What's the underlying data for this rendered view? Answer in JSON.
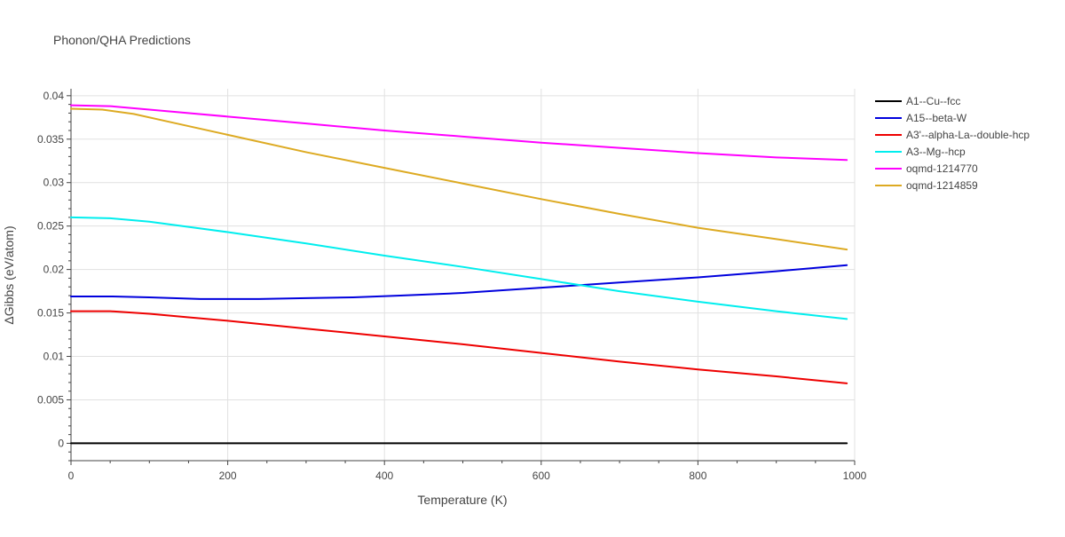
{
  "chart_data": {
    "type": "line",
    "title": "Phonon/QHA Predictions",
    "xlabel": "Temperature (K)",
    "ylabel": "ΔGibbs (eV/atom)",
    "xlim": [
      0,
      1000
    ],
    "ylim": [
      -0.002,
      0.0408
    ],
    "xticks": [
      0,
      200,
      400,
      600,
      800,
      1000
    ],
    "xtick_labels": [
      "0",
      "200",
      "400",
      "600",
      "800",
      "1000"
    ],
    "yticks": [
      0,
      0.005,
      0.01,
      0.015,
      0.02,
      0.025,
      0.03,
      0.035,
      0.04
    ],
    "ytick_labels": [
      "0",
      "0.005",
      "0.01",
      "0.015",
      "0.02",
      "0.025",
      "0.03",
      "0.035",
      "0.04"
    ],
    "grid": true,
    "legend_position": "right",
    "series": [
      {
        "name": "A1--Cu--fcc",
        "color": "#000000",
        "x": [
          0,
          990
        ],
        "y": [
          0,
          0
        ]
      },
      {
        "name": "A15--beta-W",
        "color": "#0000dd",
        "x": [
          0,
          50,
          100,
          165,
          240,
          300,
          360,
          420,
          500,
          600,
          700,
          800,
          900,
          990
        ],
        "y": [
          0.0169,
          0.0169,
          0.0168,
          0.0166,
          0.0166,
          0.0167,
          0.0168,
          0.017,
          0.0173,
          0.0179,
          0.0185,
          0.0191,
          0.0198,
          0.0205
        ]
      },
      {
        "name": "A3'--alpha-La--double-hcp",
        "color": "#ee0000",
        "x": [
          0,
          50,
          100,
          150,
          200,
          300,
          400,
          500,
          600,
          700,
          800,
          900,
          990
        ],
        "y": [
          0.0152,
          0.0152,
          0.0149,
          0.0145,
          0.0141,
          0.0132,
          0.0123,
          0.0114,
          0.0104,
          0.0094,
          0.0085,
          0.0077,
          0.0069
        ]
      },
      {
        "name": "A3--Mg--hcp",
        "color": "#00eeee",
        "x": [
          0,
          50,
          100,
          150,
          200,
          300,
          400,
          500,
          600,
          700,
          800,
          900,
          990
        ],
        "y": [
          0.026,
          0.0259,
          0.0255,
          0.0249,
          0.0243,
          0.023,
          0.0216,
          0.0203,
          0.0189,
          0.0175,
          0.0163,
          0.0152,
          0.0143
        ]
      },
      {
        "name": "oqmd-1214770",
        "color": "#ff00ff",
        "x": [
          0,
          50,
          100,
          200,
          300,
          400,
          500,
          600,
          700,
          800,
          900,
          990
        ],
        "y": [
          0.0389,
          0.0388,
          0.0384,
          0.0376,
          0.0368,
          0.036,
          0.0353,
          0.0346,
          0.034,
          0.0334,
          0.0329,
          0.0326
        ]
      },
      {
        "name": "oqmd-1214859",
        "color": "#ddaa22",
        "x": [
          0,
          40,
          80,
          130,
          200,
          300,
          400,
          500,
          600,
          700,
          800,
          900,
          990
        ],
        "y": [
          0.0385,
          0.0384,
          0.0379,
          0.0369,
          0.0355,
          0.0335,
          0.0317,
          0.0299,
          0.0281,
          0.0264,
          0.0248,
          0.0235,
          0.0223
        ]
      }
    ]
  }
}
